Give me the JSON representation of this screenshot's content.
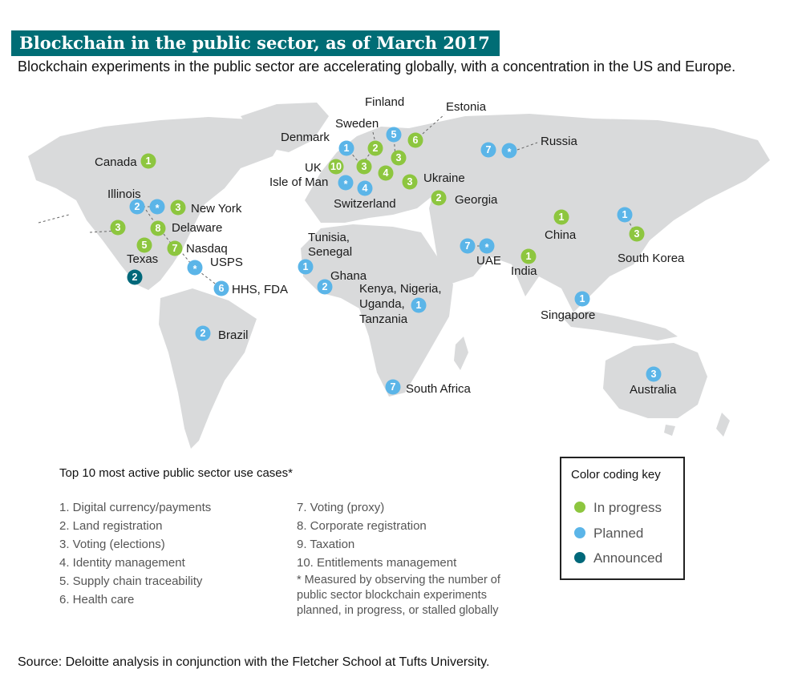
{
  "header": {
    "title": "Blockchain in the public sector, as of  March 2017",
    "subtitle": "Blockchain experiments in the public sector are accelerating globally, with a concentration in the US and Europe."
  },
  "colors": {
    "in_progress": "#8dc63f",
    "planned": "#5bb5e8",
    "announced": "#00687a",
    "land": "#d9dadb",
    "title_bg": "#006d75"
  },
  "markers": [
    {
      "name": "canada",
      "label": "Canada",
      "value": "1",
      "status": "in_progress"
    },
    {
      "name": "illinois",
      "label": "Illinois",
      "value": "2",
      "status": "planned"
    },
    {
      "name": "us-star",
      "label": "",
      "value": "*",
      "status": "planned"
    },
    {
      "name": "new-york",
      "label": "New York",
      "value": "3",
      "status": "in_progress"
    },
    {
      "name": "us-west",
      "label": "",
      "value": "3",
      "status": "in_progress"
    },
    {
      "name": "delaware",
      "label": "Delaware",
      "value": "8",
      "status": "in_progress"
    },
    {
      "name": "texas",
      "label": "Texas",
      "value": "5",
      "status": "in_progress"
    },
    {
      "name": "nasdaq",
      "label": "Nasdaq",
      "value": "7",
      "status": "in_progress"
    },
    {
      "name": "usps",
      "label": "USPS",
      "value": "*",
      "status": "planned"
    },
    {
      "name": "mexico",
      "label": "",
      "value": "2",
      "status": "announced"
    },
    {
      "name": "hhs-fda",
      "label": "HHS, FDA",
      "value": "6",
      "status": "planned"
    },
    {
      "name": "brazil",
      "label": "Brazil",
      "value": "2",
      "status": "planned"
    },
    {
      "name": "finland",
      "label": "Finland",
      "value": "5",
      "status": "planned"
    },
    {
      "name": "estonia",
      "label": "Estonia",
      "value": "6",
      "status": "in_progress"
    },
    {
      "name": "sweden",
      "label": "Sweden",
      "value": "2",
      "status": "in_progress"
    },
    {
      "name": "denmark",
      "label": "Denmark",
      "value": "1",
      "status": "planned"
    },
    {
      "name": "europe-3a",
      "label": "",
      "value": "3",
      "status": "in_progress"
    },
    {
      "name": "uk",
      "label": "UK",
      "value": "10",
      "status": "in_progress"
    },
    {
      "name": "europe-3b",
      "label": "",
      "value": "3",
      "status": "in_progress"
    },
    {
      "name": "europe-4",
      "label": "",
      "value": "4",
      "status": "in_progress"
    },
    {
      "name": "isle-of-man",
      "label": "Isle of Man",
      "value": "*",
      "status": "planned"
    },
    {
      "name": "switzerland",
      "label": "Switzerland",
      "value": "4",
      "status": "planned"
    },
    {
      "name": "ukraine",
      "label": "Ukraine",
      "value": "3",
      "status": "in_progress"
    },
    {
      "name": "georgia",
      "label": "Georgia",
      "value": "2",
      "status": "in_progress"
    },
    {
      "name": "russia-7",
      "label": "",
      "value": "7",
      "status": "planned"
    },
    {
      "name": "russia-star",
      "label": "Russia",
      "value": "*",
      "status": "planned"
    },
    {
      "name": "tunisia-senegal",
      "label": "Tunisia, Senegal",
      "value": "1",
      "status": "planned"
    },
    {
      "name": "ghana",
      "label": "Ghana",
      "value": "2",
      "status": "planned"
    },
    {
      "name": "east-africa",
      "label": "Kenya, Nigeria, Uganda, Tanzania",
      "value": "1",
      "status": "planned"
    },
    {
      "name": "uae-7",
      "label": "",
      "value": "7",
      "status": "planned"
    },
    {
      "name": "uae-star",
      "label": "UAE",
      "value": "*",
      "status": "planned"
    },
    {
      "name": "china",
      "label": "China",
      "value": "1",
      "status": "in_progress"
    },
    {
      "name": "india",
      "label": "India",
      "value": "1",
      "status": "in_progress"
    },
    {
      "name": "japan",
      "label": "",
      "value": "1",
      "status": "planned"
    },
    {
      "name": "south-korea",
      "label": "South Korea",
      "value": "3",
      "status": "in_progress"
    },
    {
      "name": "singapore",
      "label": "Singapore",
      "value": "1",
      "status": "planned"
    },
    {
      "name": "south-africa",
      "label": "South Africa",
      "value": "7",
      "status": "planned"
    },
    {
      "name": "australia",
      "label": "Australia",
      "value": "3",
      "status": "planned"
    }
  ],
  "use_cases": {
    "heading": "Top 10 most active public sector use cases*",
    "items": [
      "1. Digital currency/payments",
      "2. Land registration",
      "3. Voting (elections)",
      "4. Identity management",
      "5. Supply chain traceability",
      "6. Health care",
      "7. Voting (proxy)",
      "8. Corporate registration",
      "9. Taxation",
      "10. Entitlements management"
    ],
    "footnote": "* Measured by observing the number of public sector blockchain experiments planned, in progress, or stalled globally"
  },
  "key": {
    "title": "Color coding key",
    "in_progress": "In progress",
    "planned": "Planned",
    "announced": "Announced"
  },
  "source": "Source: Deloitte analysis in conjunction with the Fletcher School at Tufts University."
}
